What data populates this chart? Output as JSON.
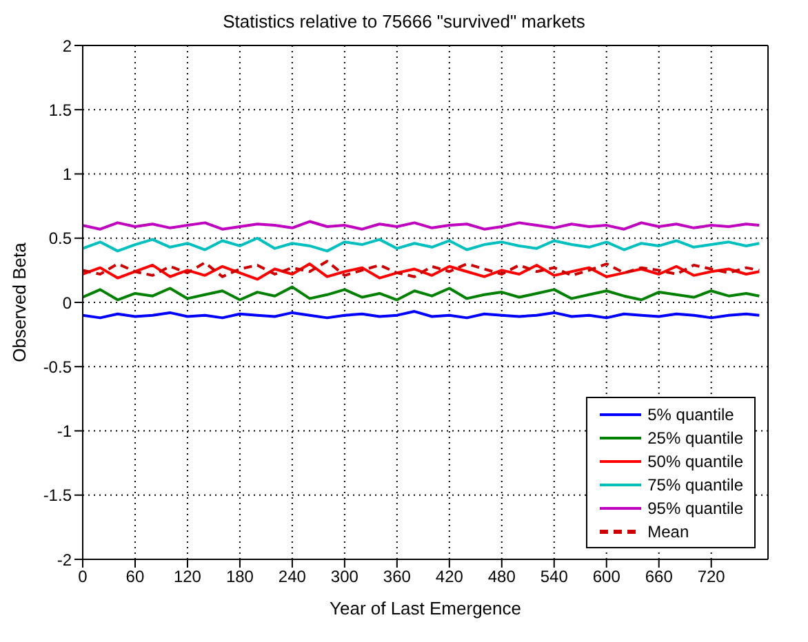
{
  "chart_data": {
    "type": "line",
    "title": "Statistics relative to 75666 \"survived\" markets",
    "xlabel": "Year of Last Emergence",
    "ylabel": "Observed Beta",
    "x": [
      0,
      20,
      40,
      60,
      80,
      100,
      120,
      140,
      160,
      180,
      200,
      220,
      240,
      260,
      280,
      300,
      320,
      340,
      360,
      380,
      400,
      420,
      440,
      460,
      480,
      500,
      520,
      540,
      560,
      580,
      600,
      620,
      640,
      660,
      680,
      700,
      720,
      740,
      760,
      775
    ],
    "xlim": [
      0,
      785
    ],
    "xticks": [
      0,
      60,
      120,
      180,
      240,
      300,
      360,
      420,
      480,
      540,
      600,
      660,
      720
    ],
    "ylim": [
      -2,
      2
    ],
    "yticks": [
      -2,
      -1.5,
      -1,
      -0.5,
      0,
      0.5,
      1,
      1.5,
      2
    ],
    "grid": true,
    "legend": "bottom right",
    "series": [
      {
        "name": "5% quantile",
        "color": "#0000ff",
        "values": [
          -0.1,
          -0.12,
          -0.09,
          -0.11,
          -0.1,
          -0.08,
          -0.11,
          -0.1,
          -0.12,
          -0.09,
          -0.1,
          -0.11,
          -0.08,
          -0.1,
          -0.12,
          -0.1,
          -0.09,
          -0.11,
          -0.1,
          -0.07,
          -0.11,
          -0.1,
          -0.12,
          -0.09,
          -0.1,
          -0.11,
          -0.1,
          -0.08,
          -0.11,
          -0.1,
          -0.12,
          -0.09,
          -0.1,
          -0.11,
          -0.09,
          -0.1,
          -0.12,
          -0.1,
          -0.09,
          -0.1
        ]
      },
      {
        "name": "25% quantile",
        "color": "#008000",
        "values": [
          0.04,
          0.1,
          0.02,
          0.07,
          0.05,
          0.11,
          0.03,
          0.06,
          0.09,
          0.02,
          0.08,
          0.05,
          0.12,
          0.03,
          0.06,
          0.1,
          0.04,
          0.07,
          0.02,
          0.09,
          0.05,
          0.11,
          0.03,
          0.06,
          0.08,
          0.04,
          0.07,
          0.1,
          0.03,
          0.06,
          0.09,
          0.05,
          0.02,
          0.08,
          0.06,
          0.04,
          0.09,
          0.05,
          0.07,
          0.05
        ]
      },
      {
        "name": "50% quantile",
        "color": "#ff0000",
        "values": [
          0.22,
          0.27,
          0.19,
          0.24,
          0.29,
          0.2,
          0.25,
          0.21,
          0.28,
          0.23,
          0.18,
          0.26,
          0.22,
          0.3,
          0.2,
          0.24,
          0.27,
          0.19,
          0.23,
          0.26,
          0.21,
          0.28,
          0.24,
          0.2,
          0.25,
          0.22,
          0.29,
          0.21,
          0.24,
          0.27,
          0.2,
          0.23,
          0.26,
          0.22,
          0.28,
          0.21,
          0.24,
          0.26,
          0.22,
          0.24
        ]
      },
      {
        "name": "75% quantile",
        "color": "#00bfbf",
        "values": [
          0.42,
          0.47,
          0.4,
          0.45,
          0.49,
          0.43,
          0.46,
          0.41,
          0.48,
          0.44,
          0.5,
          0.42,
          0.46,
          0.44,
          0.4,
          0.47,
          0.45,
          0.49,
          0.42,
          0.46,
          0.43,
          0.48,
          0.41,
          0.45,
          0.47,
          0.44,
          0.42,
          0.48,
          0.45,
          0.43,
          0.47,
          0.41,
          0.46,
          0.44,
          0.48,
          0.43,
          0.45,
          0.47,
          0.44,
          0.46
        ]
      },
      {
        "name": "95% quantile",
        "color": "#bf00bf",
        "values": [
          0.6,
          0.57,
          0.62,
          0.59,
          0.61,
          0.58,
          0.6,
          0.62,
          0.57,
          0.59,
          0.61,
          0.6,
          0.58,
          0.63,
          0.59,
          0.6,
          0.57,
          0.61,
          0.59,
          0.62,
          0.58,
          0.6,
          0.61,
          0.57,
          0.59,
          0.62,
          0.6,
          0.58,
          0.61,
          0.59,
          0.6,
          0.57,
          0.62,
          0.59,
          0.61,
          0.58,
          0.6,
          0.59,
          0.61,
          0.6
        ]
      },
      {
        "name": "Mean",
        "color": "#cc0000",
        "line_style": "dashed",
        "values": [
          0.25,
          0.22,
          0.3,
          0.24,
          0.21,
          0.28,
          0.23,
          0.31,
          0.2,
          0.26,
          0.29,
          0.22,
          0.27,
          0.24,
          0.32,
          0.21,
          0.25,
          0.29,
          0.23,
          0.2,
          0.28,
          0.24,
          0.3,
          0.26,
          0.22,
          0.29,
          0.24,
          0.27,
          0.21,
          0.25,
          0.3,
          0.23,
          0.27,
          0.25,
          0.22,
          0.29,
          0.26,
          0.23,
          0.27,
          0.25
        ]
      }
    ]
  }
}
